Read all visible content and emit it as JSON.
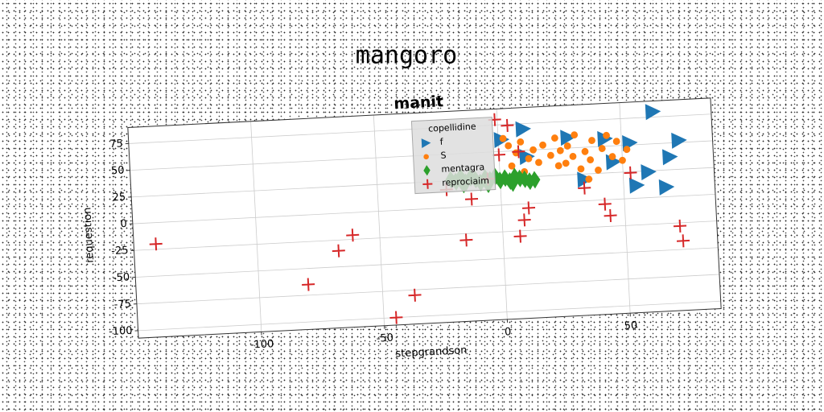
{
  "chart_data": {
    "type": "scatter",
    "suptitle": "mangoro",
    "title": "manit",
    "x_label": "stepgrandson",
    "y_label": "requestion",
    "xlim": [
      -150,
      87
    ],
    "ylim": [
      -107,
      90
    ],
    "xticks": [
      -100,
      -50,
      0,
      50
    ],
    "yticks": [
      -100,
      -75,
      -50,
      -25,
      0,
      25,
      50,
      75
    ],
    "grid": true,
    "legend_title": "copellidine",
    "legend_position": "upper center",
    "rotation": -2.9,
    "series": [
      {
        "name": "f",
        "color": "#1f77b4",
        "marker": "triangle-right",
        "x": [
          63,
          10,
          1,
          28,
          43,
          53,
          73,
          69,
          34,
          46,
          55,
          67,
          60,
          11
        ],
        "values": [
          80,
          70,
          61,
          60,
          57,
          52,
          52,
          37,
          20,
          35,
          12,
          9,
          24,
          44
        ]
      },
      {
        "name": "S",
        "color": "#ff7f0e",
        "marker": "circle",
        "x": [
          2,
          4,
          7,
          9,
          12,
          14,
          16,
          18,
          21,
          23,
          25,
          27,
          28,
          30,
          31,
          33,
          35,
          37,
          38,
          40,
          42,
          44,
          46,
          48,
          50,
          52,
          5,
          10,
          24,
          36
        ],
        "values": [
          62,
          55,
          48,
          58,
          42,
          50,
          38,
          54,
          44,
          60,
          48,
          36,
          52,
          42,
          62,
          30,
          46,
          38,
          56,
          28,
          48,
          60,
          40,
          54,
          36,
          46,
          36,
          30,
          34,
          20
        ]
      },
      {
        "name": "mentagra",
        "color": "#2ca02c",
        "marker": "diamond",
        "x": [
          -20,
          -18,
          -16,
          -14,
          -12,
          -10,
          -8,
          -6,
          -4,
          -2,
          0,
          2,
          4,
          6,
          8,
          10,
          12,
          14,
          -15,
          -5,
          5
        ],
        "values": [
          26,
          24,
          28,
          23,
          27,
          25,
          22,
          26,
          24,
          27,
          23,
          25,
          22,
          26,
          24,
          23,
          21,
          22,
          21,
          20,
          20
        ]
      },
      {
        "name": "reprociaim",
        "color": "#d62728",
        "marker": "plus",
        "x": [
          -141,
          -80,
          -67,
          -61,
          -37,
          -45,
          -15,
          -12,
          -22,
          -5,
          -1,
          4,
          0,
          8,
          9,
          7,
          11,
          42,
          44,
          72,
          73,
          53,
          34
        ],
        "values": [
          -20,
          -65,
          -35,
          -21,
          -80,
          -100,
          -31,
          7,
          17,
          25,
          80,
          74,
          47,
          49,
          -15,
          -30,
          -4,
          -4,
          -15,
          -28,
          -42,
          24,
          12
        ]
      }
    ]
  }
}
